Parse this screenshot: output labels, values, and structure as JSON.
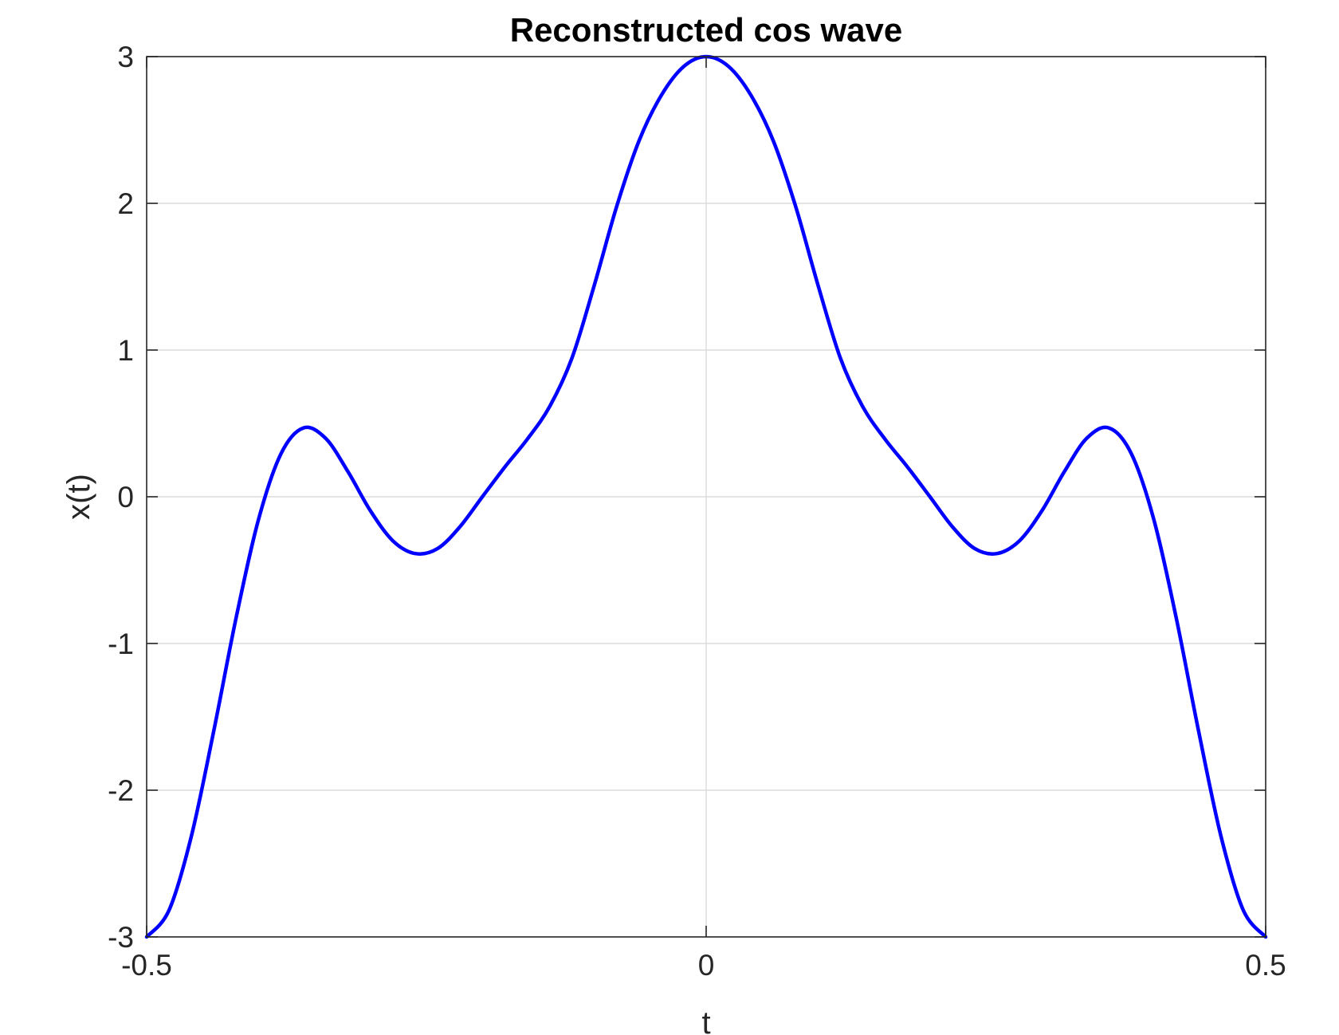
{
  "chart_data": {
    "type": "line",
    "title": "Reconstructed cos wave",
    "xlabel": "t",
    "ylabel": "x(t)",
    "xlim": [
      -0.5,
      0.5
    ],
    "ylim": [
      -3,
      3
    ],
    "x_ticks": [
      -0.5,
      0,
      0.5
    ],
    "x_tick_labels": [
      "-0.5",
      "0",
      "0.5"
    ],
    "y_ticks": [
      -3,
      -2,
      -1,
      0,
      1,
      2,
      3
    ],
    "y_tick_labels": [
      "-3",
      "-2",
      "-1",
      "0",
      "1",
      "2",
      "3"
    ],
    "grid": true,
    "legend": "none",
    "series": [
      {
        "color": "#0000ff",
        "x": [
          -0.5,
          -0.48,
          -0.46,
          -0.44,
          -0.42,
          -0.4,
          -0.38,
          -0.36,
          -0.34,
          -0.32,
          -0.3,
          -0.28,
          -0.26,
          -0.24,
          -0.22,
          -0.2,
          -0.18,
          -0.16,
          -0.14,
          -0.12,
          -0.1,
          -0.08,
          -0.06,
          -0.04,
          -0.02,
          0,
          0.02,
          0.04,
          0.06,
          0.08,
          0.1,
          0.12,
          0.14,
          0.16,
          0.18,
          0.2,
          0.22,
          0.24,
          0.26,
          0.28,
          0.3,
          0.32,
          0.34,
          0.36,
          0.38,
          0.4,
          0.42,
          0.44,
          0.46,
          0.48,
          0.5
        ],
        "y": [
          -3.0,
          -2.818,
          -2.312,
          -1.595,
          -0.823,
          -0.154,
          0.293,
          0.469,
          0.398,
          0.17,
          -0.096,
          -0.3,
          -0.387,
          -0.353,
          -0.204,
          0.0,
          0.202,
          0.391,
          0.613,
          0.944,
          1.441,
          1.978,
          2.426,
          2.737,
          2.933,
          3.0,
          2.933,
          2.737,
          2.426,
          1.978,
          1.441,
          0.944,
          0.613,
          0.391,
          0.202,
          0.0,
          -0.204,
          -0.353,
          -0.387,
          -0.3,
          -0.096,
          0.17,
          0.398,
          0.469,
          0.293,
          -0.154,
          -0.823,
          -1.595,
          -2.312,
          -2.818,
          -3.0
        ]
      }
    ]
  }
}
